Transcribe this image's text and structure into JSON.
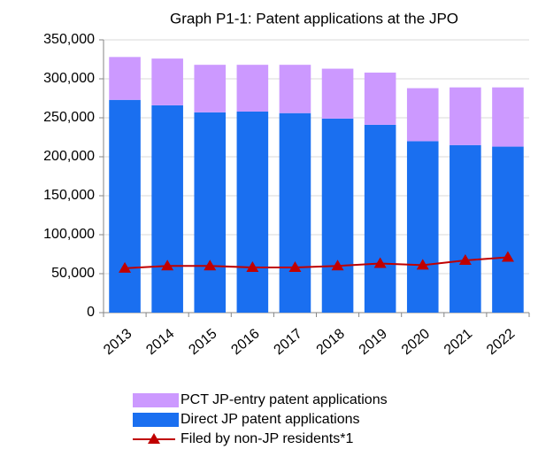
{
  "chart_data": {
    "type": "bar",
    "title": "Graph P1-1: Patent applications at the JPO",
    "categories": [
      "2013",
      "2014",
      "2015",
      "2016",
      "2017",
      "2018",
      "2019",
      "2020",
      "2021",
      "2022"
    ],
    "series": [
      {
        "name": "Direct JP patent applications",
        "type": "bar",
        "color": "#1a6ff0",
        "values": [
          273000,
          266000,
          257000,
          258000,
          256000,
          249000,
          241000,
          220000,
          215000,
          213000
        ]
      },
      {
        "name": "PCT JP-entry patent applications",
        "type": "bar",
        "color": "#cc99ff",
        "values": [
          55000,
          60000,
          61000,
          60000,
          62000,
          64000,
          67000,
          68000,
          74000,
          76000
        ]
      },
      {
        "name": "Filed by non-JP residents*1",
        "type": "line",
        "color": "#c00000",
        "values": [
          57000,
          60000,
          60000,
          58000,
          58000,
          60000,
          63000,
          61000,
          67000,
          71000
        ]
      }
    ],
    "stacked": true,
    "ylim": [
      0,
      350000
    ],
    "yticks": [
      0,
      {
        "value": 50000,
        "label": "50,000"
      },
      {
        "value": 100000,
        "label": "100,000"
      },
      {
        "value": 150000,
        "label": "150,000"
      },
      {
        "value": 200000,
        "label": "200,000"
      },
      {
        "value": 250000,
        "label": "250,000"
      },
      {
        "value": 300000,
        "label": "300,000"
      },
      {
        "value": 350000,
        "label": "350,000"
      }
    ],
    "grid": true,
    "legend": "bottom"
  }
}
